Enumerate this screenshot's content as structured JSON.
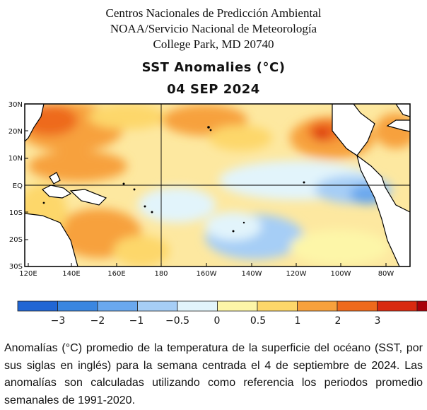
{
  "header": {
    "line1": "Centros Nacionales de Predicción Ambiental",
    "line2": "NOAA/Servicio Nacional de Meteorología",
    "line3": "College Park, MD 20740"
  },
  "map": {
    "title": "SST Anomalies (°C)",
    "date": "04 SEP 2024",
    "lat_labels": [
      "30N",
      "20N",
      "10N",
      "EQ",
      "10S",
      "20S",
      "30S"
    ],
    "lon_labels": [
      "120E",
      "140E",
      "160E",
      "180",
      "160W",
      "140W",
      "120W",
      "100W",
      "80W"
    ]
  },
  "colorbar": {
    "colors": [
      "#2166d4",
      "#3a86e0",
      "#6aa8ee",
      "#a6cef6",
      "#e2f4fb",
      "#fdf6a8",
      "#fdd76a",
      "#f7a13c",
      "#ee6a1c",
      "#d82a10",
      "#a8000a"
    ],
    "tick_labels": [
      "−3",
      "−2",
      "−1",
      "−0.5",
      "0",
      "0.5",
      "1",
      "2",
      "3"
    ]
  },
  "caption": "Anomalías (°C) promedio de la temperatura de la superficie del océano (SST, por sus siglas en inglés) para la semana centrada el 4 de septiembre de 2024. Las anomalías son calculadas utilizando como referencia los periodos promedio semanales de 1991-2020."
}
